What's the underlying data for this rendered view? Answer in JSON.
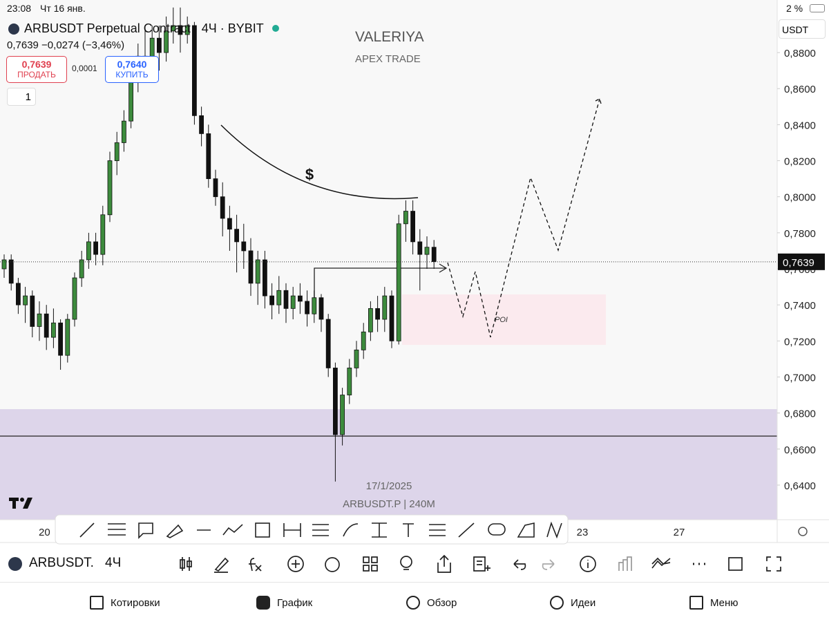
{
  "status_bar": {
    "time": "23:08",
    "date": "Чт 16 янв.",
    "battery": "2 %"
  },
  "header": {
    "symbol_title": "ARBUSDT Perpetual Contract · 4Ч · BYBIT",
    "quote": "0,7639 −0,0274 (−3,46%)",
    "sell_price": "0,7639",
    "sell_label": "ПРОДАТЬ",
    "spread": "0,0001",
    "buy_price": "0,7640",
    "buy_label": "КУПИТЬ",
    "indicator_count": "1",
    "currency": "USDT"
  },
  "watermark": {
    "title": "VALERIYA",
    "subtitle": "APEX TRADE"
  },
  "annotations": {
    "dollar": "$",
    "poi": "POI",
    "date_marker": "17/1/2025",
    "instrument": "ARBUSDT.P | 240M"
  },
  "chart": {
    "type": "candlestick",
    "ylim": [
      0.6208,
      0.9015
    ],
    "yticks": [
      {
        "value": 0.88,
        "label": "0,8800"
      },
      {
        "value": 0.86,
        "label": "0,8600"
      },
      {
        "value": 0.84,
        "label": "0,8400"
      },
      {
        "value": 0.82,
        "label": "0,8200"
      },
      {
        "value": 0.8,
        "label": "0,8000"
      },
      {
        "value": 0.78,
        "label": "0,7800"
      },
      {
        "value": 0.76,
        "label": "0,7600"
      },
      {
        "value": 0.74,
        "label": "0,7400"
      },
      {
        "value": 0.72,
        "label": "0,7200"
      },
      {
        "value": 0.7,
        "label": "0,7000"
      },
      {
        "value": 0.68,
        "label": "0,6800"
      },
      {
        "value": 0.66,
        "label": "0,6600"
      },
      {
        "value": 0.64,
        "label": "0,6400"
      }
    ],
    "last_price": {
      "value": 0.7639,
      "label": "0,7639"
    },
    "x_labels": [
      "20",
      "23",
      "27"
    ],
    "candles": {
      "open": [
        0.76,
        0.765,
        0.752,
        0.74,
        0.745,
        0.728,
        0.735,
        0.722,
        0.73,
        0.712,
        0.732,
        0.755,
        0.765,
        0.775,
        0.768,
        0.79,
        0.82,
        0.83,
        0.842,
        0.865,
        0.878,
        0.872,
        0.888,
        0.88,
        0.892,
        0.895,
        0.89,
        0.895,
        0.845,
        0.835,
        0.81,
        0.8,
        0.788,
        0.782,
        0.775,
        0.77,
        0.752,
        0.765,
        0.745,
        0.74,
        0.748,
        0.738,
        0.745,
        0.742,
        0.735,
        0.744,
        0.732,
        0.705,
        0.668,
        0.69,
        0.705,
        0.715,
        0.725,
        0.738,
        0.732,
        0.745,
        0.72,
        0.785,
        0.792,
        0.775,
        0.768,
        0.772
      ],
      "high": [
        0.768,
        0.768,
        0.755,
        0.75,
        0.748,
        0.742,
        0.74,
        0.738,
        0.732,
        0.735,
        0.758,
        0.77,
        0.78,
        0.78,
        0.795,
        0.825,
        0.836,
        0.848,
        0.87,
        0.885,
        0.895,
        0.895,
        0.895,
        0.9,
        0.905,
        0.905,
        0.9,
        0.897,
        0.85,
        0.84,
        0.815,
        0.808,
        0.795,
        0.79,
        0.785,
        0.777,
        0.77,
        0.77,
        0.752,
        0.756,
        0.752,
        0.75,
        0.752,
        0.748,
        0.748,
        0.746,
        0.735,
        0.708,
        0.694,
        0.71,
        0.72,
        0.73,
        0.742,
        0.745,
        0.75,
        0.748,
        0.79,
        0.798,
        0.798,
        0.782,
        0.778,
        0.776
      ],
      "low": [
        0.755,
        0.748,
        0.735,
        0.73,
        0.722,
        0.72,
        0.715,
        0.716,
        0.704,
        0.708,
        0.728,
        0.75,
        0.76,
        0.762,
        0.762,
        0.786,
        0.812,
        0.825,
        0.838,
        0.858,
        0.865,
        0.866,
        0.87,
        0.875,
        0.885,
        0.88,
        0.885,
        0.84,
        0.828,
        0.805,
        0.795,
        0.778,
        0.77,
        0.758,
        0.76,
        0.745,
        0.74,
        0.738,
        0.732,
        0.735,
        0.73,
        0.732,
        0.735,
        0.728,
        0.73,
        0.725,
        0.7,
        0.642,
        0.662,
        0.685,
        0.7,
        0.71,
        0.72,
        0.725,
        0.725,
        0.716,
        0.718,
        0.775,
        0.768,
        0.748,
        0.76,
        0.76
      ],
      "close": [
        0.765,
        0.752,
        0.74,
        0.745,
        0.728,
        0.735,
        0.722,
        0.73,
        0.712,
        0.732,
        0.755,
        0.765,
        0.775,
        0.768,
        0.79,
        0.82,
        0.83,
        0.842,
        0.865,
        0.878,
        0.872,
        0.888,
        0.88,
        0.892,
        0.895,
        0.89,
        0.895,
        0.845,
        0.835,
        0.81,
        0.8,
        0.788,
        0.782,
        0.775,
        0.77,
        0.752,
        0.765,
        0.745,
        0.74,
        0.748,
        0.738,
        0.745,
        0.742,
        0.735,
        0.744,
        0.732,
        0.705,
        0.668,
        0.69,
        0.705,
        0.715,
        0.725,
        0.738,
        0.732,
        0.745,
        0.72,
        0.785,
        0.792,
        0.775,
        0.768,
        0.772,
        0.764
      ]
    }
  },
  "symbol_bar": {
    "symbol": "ARBUSDT.",
    "interval": "4Ч"
  },
  "nav": {
    "items": [
      "Котировки",
      "График",
      "Обзор",
      "Идеи",
      "Меню"
    ]
  }
}
